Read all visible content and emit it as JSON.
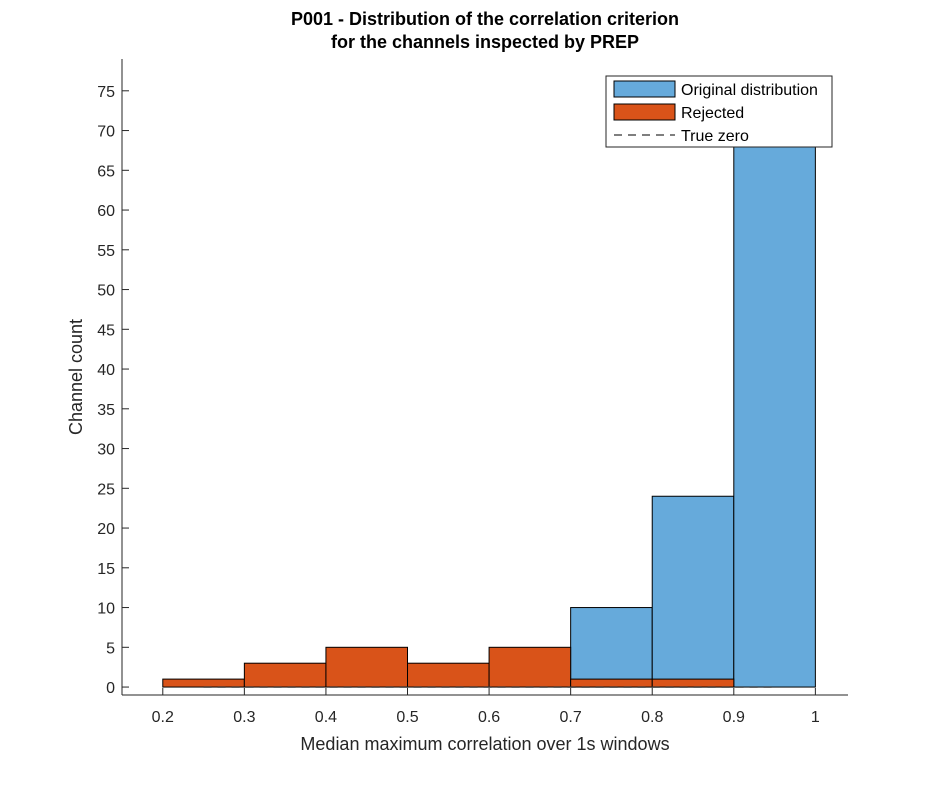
{
  "chart_data": {
    "type": "bar",
    "title": [
      "P001 - Distribution of the correlation criterion",
      "for the channels inspected by PREP"
    ],
    "xlabel": "Median maximum correlation over 1s windows",
    "ylabel": "Channel count",
    "xlim": [
      0.15,
      1.04
    ],
    "ylim": [
      -1,
      79
    ],
    "xticks": [
      0.2,
      0.3,
      0.4,
      0.5,
      0.6,
      0.7,
      0.8,
      0.9,
      1
    ],
    "xtick_labels": [
      "0.2",
      "0.3",
      "0.4",
      "0.5",
      "0.6",
      "0.7",
      "0.8",
      "0.9",
      "1"
    ],
    "yticks": [
      0,
      5,
      10,
      15,
      20,
      25,
      30,
      35,
      40,
      45,
      50,
      55,
      60,
      65,
      70,
      75
    ],
    "ytick_labels": [
      "0",
      "5",
      "10",
      "15",
      "20",
      "25",
      "30",
      "35",
      "40",
      "45",
      "50",
      "55",
      "60",
      "65",
      "70",
      "75"
    ],
    "bin_edges": [
      0.2,
      0.3,
      0.4,
      0.5,
      0.6,
      0.7,
      0.8,
      0.9,
      1.0
    ],
    "series": [
      {
        "name": "Original distribution",
        "color": "#66aadb",
        "values": [
          0,
          0,
          0,
          0,
          0,
          10,
          24,
          68
        ]
      },
      {
        "name": "Rejected",
        "color": "#d95319",
        "values": [
          1,
          3,
          5,
          3,
          5,
          1,
          1,
          0
        ]
      }
    ],
    "reference_line": {
      "name": "True zero",
      "style": "dashed",
      "color": "#333333",
      "x": [
        0.25,
        0.95
      ],
      "y": 0
    },
    "legend_position": "top-right",
    "grid": false
  }
}
